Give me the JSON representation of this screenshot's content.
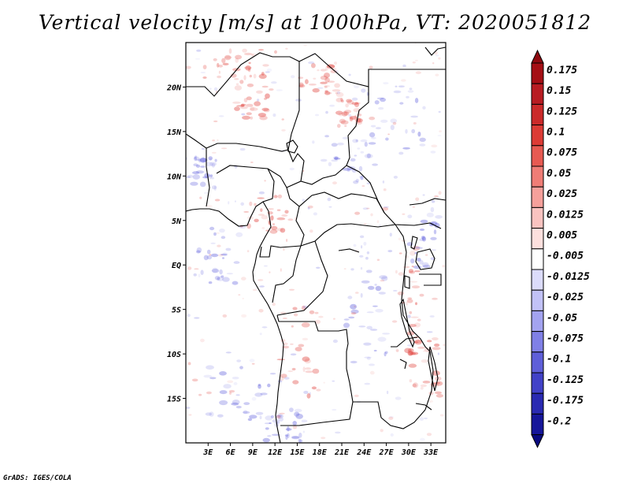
{
  "title": "Vertical velocity [m/s] at 1000hPa, VT: 2020051812",
  "credit": "GrADS: IGES/COLA",
  "map": {
    "lon_range": [
      0,
      35
    ],
    "lat_range": [
      -20,
      25
    ],
    "lon_ticks": [
      {
        "value": 3,
        "label": "3E"
      },
      {
        "value": 6,
        "label": "6E"
      },
      {
        "value": 9,
        "label": "9E"
      },
      {
        "value": 12,
        "label": "12E"
      },
      {
        "value": 15,
        "label": "15E"
      },
      {
        "value": 18,
        "label": "18E"
      },
      {
        "value": 21,
        "label": "21E"
      },
      {
        "value": 24,
        "label": "24E"
      },
      {
        "value": 27,
        "label": "27E"
      },
      {
        "value": 30,
        "label": "30E"
      },
      {
        "value": 33,
        "label": "33E"
      }
    ],
    "lat_ticks": [
      {
        "value": 20,
        "label": "20N"
      },
      {
        "value": 15,
        "label": "15N"
      },
      {
        "value": 10,
        "label": "10N"
      },
      {
        "value": 5,
        "label": "5N"
      },
      {
        "value": 0,
        "label": "EQ"
      },
      {
        "value": -5,
        "label": "5S"
      },
      {
        "value": -10,
        "label": "10S"
      },
      {
        "value": -15,
        "label": "15S"
      }
    ]
  },
  "colorbar": {
    "levels": [
      {
        "label": "0.175",
        "color": "#a50f15"
      },
      {
        "label": "0.15",
        "color": "#b81c22"
      },
      {
        "label": "0.125",
        "color": "#cb2a2a"
      },
      {
        "label": "0.1",
        "color": "#dc3b35"
      },
      {
        "label": "0.075",
        "color": "#e75a52"
      },
      {
        "label": "0.05",
        "color": "#ef7d76"
      },
      {
        "label": "0.025",
        "color": "#f5a09b"
      },
      {
        "label": "0.0125",
        "color": "#f9c3c0"
      },
      {
        "label": "0.005",
        "color": "#fde0de"
      },
      {
        "label": "-0.005",
        "color": "#ffffff"
      },
      {
        "label": "-0.0125",
        "color": "#dcdcfb"
      },
      {
        "label": "-0.025",
        "color": "#c2c2f7"
      },
      {
        "label": "-0.05",
        "color": "#a3a3f0"
      },
      {
        "label": "-0.075",
        "color": "#8080e6"
      },
      {
        "label": "-0.1",
        "color": "#5f5fd9"
      },
      {
        "label": "-0.125",
        "color": "#4242c8"
      },
      {
        "label": "-0.175",
        "color": "#2a2ab2"
      },
      {
        "label": "-0.2",
        "color": "#16169a"
      }
    ],
    "top_color": "#8f0a10",
    "bottom_color": "#0a0a80",
    "zero_color": "#ffffff"
  },
  "field": {
    "positive_color": "#e24b45",
    "negative_color": "#6f6fe0"
  }
}
